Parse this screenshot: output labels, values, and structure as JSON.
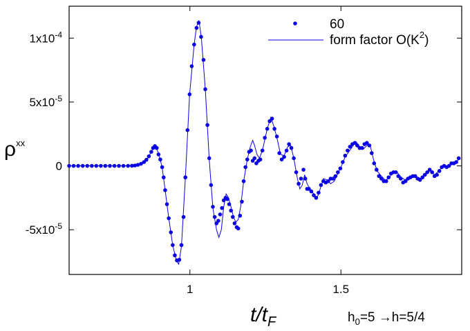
{
  "chart_data": {
    "type": "line",
    "title": "",
    "xlabel": "t/t",
    "xlabel_sub": "F",
    "ylabel": "ρ",
    "ylabel_sup": "xx",
    "xlim": [
      0.6,
      1.9
    ],
    "ylim": [
      -8.5e-05,
      0.000125
    ],
    "x_ticks": [
      {
        "value": 1.0,
        "label": "1"
      },
      {
        "value": 1.5,
        "label": "1.5"
      }
    ],
    "y_ticks": [
      {
        "value": -5e-05,
        "base": "-5x10",
        "exp": "-5"
      },
      {
        "value": 0,
        "base": "0",
        "exp": ""
      },
      {
        "value": 5e-05,
        "base": "5x10",
        "exp": "-5"
      },
      {
        "value": 0.0001,
        "base": "1x10",
        "exp": "-4"
      }
    ],
    "grid": false,
    "legend_position": "top-right",
    "annotation": {
      "h0": "h",
      "h0_sub": "0",
      "rest": "=5 →h=5/4"
    },
    "series": [
      {
        "name": "60",
        "style": "markers",
        "color": "#0a00e6",
        "points": [
          [
            0.6,
            0
          ],
          [
            0.615,
            0
          ],
          [
            0.63,
            0
          ],
          [
            0.645,
            0
          ],
          [
            0.66,
            0
          ],
          [
            0.675,
            0
          ],
          [
            0.69,
            0
          ],
          [
            0.705,
            0
          ],
          [
            0.72,
            0
          ],
          [
            0.735,
            0
          ],
          [
            0.75,
            0
          ],
          [
            0.765,
            0
          ],
          [
            0.78,
            0
          ],
          [
            0.795,
            0
          ],
          [
            0.808,
            1e-07
          ],
          [
            0.818,
            3e-07
          ],
          [
            0.828,
            8e-07
          ],
          [
            0.838,
            1.6e-06
          ],
          [
            0.848,
            3e-06
          ],
          [
            0.856,
            4.8e-06
          ],
          [
            0.864,
            7.5e-06
          ],
          [
            0.872,
            1.1e-05
          ],
          [
            0.878,
            1.4e-05
          ],
          [
            0.884,
            1.55e-05
          ],
          [
            0.89,
            1.4e-05
          ],
          [
            0.896,
            9e-06
          ],
          [
            0.902,
            5e-06
          ],
          [
            0.908,
            -1e-06
          ],
          [
            0.913,
            -9e-06
          ],
          [
            0.918,
            -1.9e-05
          ],
          [
            0.924,
            -3e-05
          ],
          [
            0.93,
            -4.1e-05
          ],
          [
            0.937,
            -5.2e-05
          ],
          [
            0.943,
            -6.2e-05
          ],
          [
            0.95,
            -7e-05
          ],
          [
            0.957,
            -7.4e-05
          ],
          [
            0.965,
            -7.35e-05
          ],
          [
            0.972,
            -6.2e-05
          ],
          [
            0.979,
            -4e-05
          ],
          [
            0.985,
            -9e-06
          ],
          [
            0.992,
            2.8e-05
          ],
          [
            0.999,
            5.6e-05
          ],
          [
            1.006,
            7.8e-05
          ],
          [
            1.014,
            9.5e-05
          ],
          [
            1.022,
            0.000108
          ],
          [
            1.029,
            0.000112
          ],
          [
            1.037,
            0.000101
          ],
          [
            1.045,
            8.3e-05
          ],
          [
            1.051,
            6e-05
          ],
          [
            1.058,
            3.2e-05
          ],
          [
            1.064,
            6e-06
          ],
          [
            1.07,
            -1.5e-05
          ],
          [
            1.076,
            -3.2e-05
          ],
          [
            1.082,
            -4e-05
          ],
          [
            1.088,
            -4.5e-05
          ],
          [
            1.094,
            -4.3e-05
          ],
          [
            1.1,
            -3.8e-05
          ],
          [
            1.106,
            -3.3e-05
          ],
          [
            1.112,
            -2.7e-05
          ],
          [
            1.118,
            -2.5e-05
          ],
          [
            1.124,
            -2.6e-05
          ],
          [
            1.13,
            -3e-05
          ],
          [
            1.136,
            -3.5e-05
          ],
          [
            1.142,
            -4e-05
          ],
          [
            1.148,
            -4.5e-05
          ],
          [
            1.155,
            -4.8e-05
          ],
          [
            1.16,
            -4.9e-05
          ],
          [
            1.166,
            -3.9e-05
          ],
          [
            1.172,
            -2.8e-05
          ],
          [
            1.178,
            -1.2e-05
          ],
          [
            1.184,
            -1e-06
          ],
          [
            1.19,
            5e-06
          ],
          [
            1.196,
            1.1e-05
          ],
          [
            1.202,
            1.2e-05
          ],
          [
            1.208,
            4e-06
          ],
          [
            1.214,
            6e-06
          ],
          [
            1.22,
            2e-06
          ],
          [
            1.227,
            4e-06
          ],
          [
            1.233,
            5e-06
          ],
          [
            1.24,
            1.2e-05
          ],
          [
            1.248,
            2.2e-05
          ],
          [
            1.256,
            2.9e-05
          ],
          [
            1.264,
            3.5e-05
          ],
          [
            1.272,
            3.7e-05
          ],
          [
            1.28,
            2.9e-05
          ],
          [
            1.288,
            2.3e-05
          ],
          [
            1.296,
            1e-05
          ],
          [
            1.304,
            5e-06
          ],
          [
            1.312,
            7e-06
          ],
          [
            1.32,
            1.2e-05
          ],
          [
            1.328,
            1.7e-05
          ],
          [
            1.336,
            1.4e-05
          ],
          [
            1.344,
            6e-06
          ],
          [
            1.352,
            -5e-06
          ],
          [
            1.36,
            -1.4e-05
          ],
          [
            1.368,
            -1e-05
          ],
          [
            1.376,
            -3e-06
          ],
          [
            1.382,
            -1e-05
          ],
          [
            1.388,
            -1.8e-05
          ],
          [
            1.394,
            -1.8e-05
          ],
          [
            1.402,
            -2e-05
          ],
          [
            1.41,
            -2.3e-05
          ],
          [
            1.418,
            -2.5e-05
          ],
          [
            1.426,
            -2.1e-05
          ],
          [
            1.434,
            -1.5e-05
          ],
          [
            1.442,
            -1.2e-05
          ],
          [
            1.45,
            -1.3e-05
          ],
          [
            1.458,
            -1.2e-05
          ],
          [
            1.466,
            -1e-05
          ],
          [
            1.474,
            -1e-05
          ],
          [
            1.482,
            -8e-06
          ],
          [
            1.49,
            -5e-06
          ],
          [
            1.498,
            -2e-06
          ],
          [
            1.506,
            3e-06
          ],
          [
            1.514,
            8e-06
          ],
          [
            1.522,
            1.2e-05
          ],
          [
            1.53,
            1.5e-05
          ],
          [
            1.538,
            1.7e-05
          ],
          [
            1.546,
            1.8e-05
          ],
          [
            1.554,
            1.6e-05
          ],
          [
            1.562,
            1.4e-05
          ],
          [
            1.57,
            1.4e-05
          ],
          [
            1.578,
            1.7e-05
          ],
          [
            1.586,
            1.8e-05
          ],
          [
            1.594,
            1.6e-05
          ],
          [
            1.602,
            1e-05
          ],
          [
            1.61,
            2e-06
          ],
          [
            1.618,
            -3e-06
          ],
          [
            1.626,
            -8e-06
          ],
          [
            1.634,
            -1e-05
          ],
          [
            1.642,
            -1.2e-05
          ],
          [
            1.65,
            -1.2e-05
          ],
          [
            1.658,
            -9e-06
          ],
          [
            1.666,
            -6e-06
          ],
          [
            1.674,
            -5e-06
          ],
          [
            1.682,
            -5e-06
          ],
          [
            1.69,
            -8e-06
          ],
          [
            1.698,
            -1e-05
          ],
          [
            1.706,
            -1.3e-05
          ],
          [
            1.714,
            -1.2e-05
          ],
          [
            1.722,
            -1e-05
          ],
          [
            1.73,
            -9e-06
          ],
          [
            1.738,
            -8e-06
          ],
          [
            1.746,
            -8e-06
          ],
          [
            1.754,
            -1e-05
          ],
          [
            1.762,
            -1.1e-05
          ],
          [
            1.77,
            -9e-06
          ],
          [
            1.778,
            -7e-06
          ],
          [
            1.786,
            -5e-06
          ],
          [
            1.794,
            -3e-06
          ],
          [
            1.802,
            -5e-06
          ],
          [
            1.81,
            -8e-06
          ],
          [
            1.818,
            -7e-06
          ],
          [
            1.826,
            -4e-06
          ],
          [
            1.834,
            -1e-06
          ],
          [
            1.842,
            0
          ],
          [
            1.85,
            -1e-06
          ],
          [
            1.858,
            0
          ],
          [
            1.866,
            2e-06
          ],
          [
            1.874,
            2e-06
          ],
          [
            1.882,
            3e-06
          ],
          [
            1.89,
            6e-06
          ]
        ]
      },
      {
        "name": "form factor O(K^2)",
        "style": "line",
        "color": "#0a00e6",
        "points": [
          [
            0.6,
            0
          ],
          [
            0.8,
            0
          ],
          [
            0.82,
            4e-07
          ],
          [
            0.84,
            2e-06
          ],
          [
            0.86,
            6e-06
          ],
          [
            0.872,
            1.1e-05
          ],
          [
            0.884,
            1.6e-05
          ],
          [
            0.896,
            1e-05
          ],
          [
            0.908,
            -1e-06
          ],
          [
            0.918,
            -1.9e-05
          ],
          [
            0.93,
            -4.1e-05
          ],
          [
            0.943,
            -6.2e-05
          ],
          [
            0.955,
            -7.4e-05
          ],
          [
            0.963,
            -7.7e-05
          ],
          [
            0.972,
            -6.3e-05
          ],
          [
            0.985,
            -9e-06
          ],
          [
            0.999,
            5.6e-05
          ],
          [
            1.014,
            9.5e-05
          ],
          [
            1.022,
            0.000109
          ],
          [
            1.03,
            0.000114
          ],
          [
            1.038,
            0.0001
          ],
          [
            1.051,
            6e-05
          ],
          [
            1.064,
            5e-06
          ],
          [
            1.076,
            -3.3e-05
          ],
          [
            1.088,
            -5e-05
          ],
          [
            1.096,
            -5.6e-05
          ],
          [
            1.104,
            -5e-05
          ],
          [
            1.112,
            -3.2e-05
          ],
          [
            1.12,
            -2.2e-05
          ],
          [
            1.128,
            -2.5e-05
          ],
          [
            1.136,
            -3.2e-05
          ],
          [
            1.144,
            -4e-05
          ],
          [
            1.152,
            -4.4e-05
          ],
          [
            1.16,
            -4.2e-05
          ],
          [
            1.168,
            -3.2e-05
          ],
          [
            1.178,
            -1.2e-05
          ],
          [
            1.19,
            5e-06
          ],
          [
            1.2,
            1.5e-05
          ],
          [
            1.208,
            2e-05
          ],
          [
            1.214,
            1.6e-05
          ],
          [
            1.222,
            9e-06
          ],
          [
            1.23,
            6e-06
          ],
          [
            1.24,
            1.2e-05
          ],
          [
            1.256,
            2.9e-05
          ],
          [
            1.268,
            3.8e-05
          ],
          [
            1.278,
            3.1e-05
          ],
          [
            1.29,
            2e-05
          ],
          [
            1.3,
            9e-06
          ],
          [
            1.312,
            8e-06
          ],
          [
            1.324,
            1.5e-05
          ],
          [
            1.334,
            1.6e-05
          ],
          [
            1.344,
            6e-06
          ],
          [
            1.356,
            -1e-05
          ],
          [
            1.364,
            -1.8e-05
          ],
          [
            1.372,
            -1.5e-05
          ],
          [
            1.38,
            -7e-06
          ],
          [
            1.388,
            -1.4e-05
          ],
          [
            1.398,
            -1.8e-05
          ],
          [
            1.41,
            -2.2e-05
          ],
          [
            1.42,
            -2.6e-05
          ],
          [
            1.43,
            -1.9e-05
          ],
          [
            1.442,
            -1e-05
          ],
          [
            1.454,
            -1.1e-05
          ],
          [
            1.466,
            -1.4e-05
          ],
          [
            1.478,
            -1.2e-05
          ],
          [
            1.49,
            -6e-06
          ],
          [
            1.502,
            0
          ],
          [
            1.514,
            7e-06
          ],
          [
            1.526,
            1.1e-05
          ],
          [
            1.538,
            1.5e-05
          ],
          [
            1.55,
            1.9e-05
          ],
          [
            1.562,
            1.5e-05
          ],
          [
            1.574,
            1.3e-05
          ],
          [
            1.586,
            1.6e-05
          ],
          [
            1.596,
            1.7e-05
          ],
          [
            1.608,
            5e-06
          ],
          [
            1.62,
            -4e-06
          ],
          [
            1.634,
            -8e-06
          ],
          [
            1.646,
            -1.1e-05
          ],
          [
            1.658,
            -1e-05
          ],
          [
            1.672,
            -5e-06
          ],
          [
            1.686,
            -5e-06
          ],
          [
            1.7,
            -9e-06
          ],
          [
            1.712,
            -1.1e-05
          ],
          [
            1.726,
            -9e-06
          ],
          [
            1.74,
            -7e-06
          ],
          [
            1.754,
            -9e-06
          ],
          [
            1.768,
            -1e-05
          ],
          [
            1.782,
            -5e-06
          ],
          [
            1.796,
            -3e-06
          ],
          [
            1.81,
            -7e-06
          ],
          [
            1.824,
            -4e-06
          ],
          [
            1.838,
            0
          ],
          [
            1.852,
            -1e-06
          ],
          [
            1.866,
            2e-06
          ],
          [
            1.88,
            3e-06
          ],
          [
            1.89,
            5e-06
          ]
        ]
      }
    ]
  }
}
